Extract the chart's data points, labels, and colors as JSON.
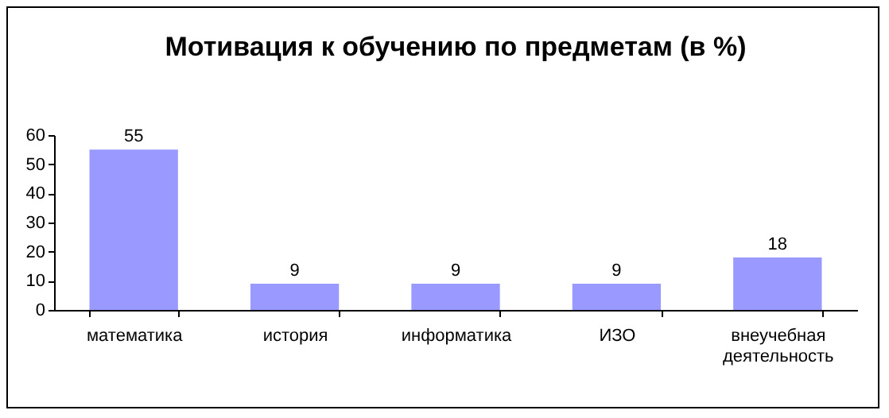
{
  "chart_data": {
    "type": "bar",
    "title": "Мотивация к обучению по предметам (в %)",
    "categories": [
      "математика",
      "история",
      "информатика",
      "ИЗО",
      "внеучебная деятельность"
    ],
    "values": [
      55,
      9,
      9,
      9,
      18
    ],
    "color": "#9999ff",
    "ylim": [
      0,
      60
    ],
    "yticks": [
      0,
      10,
      20,
      30,
      40,
      50,
      60
    ],
    "grid": false,
    "data_labels": true
  }
}
